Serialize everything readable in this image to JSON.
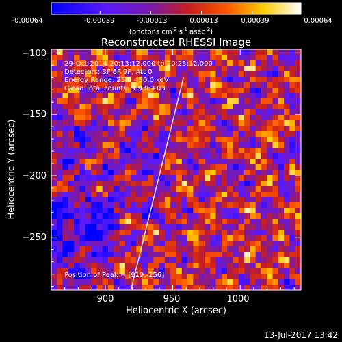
{
  "colorbar": {
    "tick_labels": [
      "-0.00064",
      "-0.00039",
      "-0.00013",
      "0.00013",
      "0.00039",
      "0.00064"
    ],
    "units_main": "(photons cm",
    "units_exp1": "-2",
    "units_mid1": " s",
    "units_exp2": "-1",
    "units_mid2": " asec",
    "units_exp3": "-2",
    "units_end": ")"
  },
  "annotations": {
    "time_range": "29-Oct-2014 20:13:12.000 to 20:23:12.000",
    "detectors": "Detectors: 3F 6F 9F, Att 0",
    "energy": "Energy Range: 25.0 - 50.0 keV",
    "method": "Clean     Total counts: 9.93E+03",
    "peak": "Position of Peak = [919,-256]"
  },
  "footer": {
    "timestamp": "13-Jul-2017 13:42"
  },
  "chart_data": {
    "type": "heatmap",
    "title": "Reconstructed RHESSI Image",
    "xlabel": "Heliocentric X (arcsec)",
    "ylabel": "Heliocentric Y (arcsec)",
    "xlim": [
      860,
      1045
    ],
    "ylim": [
      -293,
      -97
    ],
    "x_ticks": [
      900,
      950,
      1000
    ],
    "y_ticks": [
      -100,
      -150,
      -200,
      -250
    ],
    "x_tick_labels": [
      "900",
      "950",
      "1000"
    ],
    "y_tick_labels": [
      "−100",
      "−150",
      "−200",
      "−250"
    ],
    "colorbar_range": [
      -0.00064,
      0.00064
    ],
    "colormap": "red-temperature (blue negative to white positive)",
    "limb_line": {
      "from": [
        919,
        -293
      ],
      "to": [
        958,
        -120
      ]
    },
    "peak": [
      919,
      -256
    ]
  }
}
